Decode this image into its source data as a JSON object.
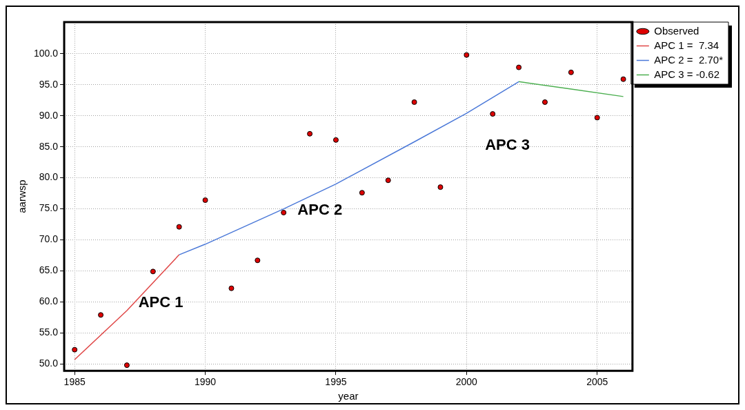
{
  "chart_data": {
    "type": "scatter",
    "xlabel": "year",
    "ylabel": "aarwsp",
    "xlim": [
      1984.6,
      2006.35
    ],
    "ylim": [
      48.9,
      105.1
    ],
    "xticks": [
      1985,
      1990,
      1995,
      2000,
      2005
    ],
    "yticks": [
      {
        "value": 50,
        "label": "50.0"
      },
      {
        "value": 55,
        "label": "55.0"
      },
      {
        "value": 60,
        "label": "60.0"
      },
      {
        "value": 65,
        "label": "65.0"
      },
      {
        "value": 70,
        "label": "70.0"
      },
      {
        "value": 75,
        "label": "75.0"
      },
      {
        "value": 80,
        "label": "80.0"
      },
      {
        "value": 85,
        "label": "85.0"
      },
      {
        "value": 90,
        "label": "90.0"
      },
      {
        "value": 95,
        "label": "95.0"
      },
      {
        "value": 100,
        "label": "100.0"
      }
    ],
    "grid": true,
    "legend": "top right",
    "series": [
      {
        "name": "Observed",
        "marker": "circle",
        "color": "#dd0000",
        "x": [
          1985,
          1986,
          1987,
          1988,
          1989,
          1990,
          1991,
          1992,
          1993,
          1994,
          1995,
          1996,
          1997,
          1998,
          1999,
          2000,
          2001,
          2002,
          2003,
          2004,
          2005,
          2006
        ],
        "values": [
          52.3,
          57.9,
          49.8,
          64.9,
          72.1,
          76.4,
          62.2,
          66.7,
          74.4,
          87.1,
          86.1,
          77.6,
          79.6,
          92.2,
          78.5,
          99.8,
          90.3,
          97.8,
          92.2,
          97.0,
          89.7,
          95.9
        ]
      },
      {
        "name": "APC 1 =  7.34",
        "type": "line",
        "color": "#e04848",
        "x": [
          1985,
          1987,
          1989
        ],
        "values": [
          50.7,
          58.6,
          67.6
        ]
      },
      {
        "name": "APC 2 =  2.70*",
        "type": "line",
        "color": "#4a78d8",
        "x": [
          1989,
          1990,
          1993,
          1995,
          1998,
          2000,
          2002
        ],
        "values": [
          67.6,
          69.3,
          75.0,
          79.0,
          85.8,
          90.4,
          95.5
        ]
      },
      {
        "name": "APC 3 = -0.62",
        "type": "line",
        "color": "#4caf50",
        "x": [
          2002,
          2004,
          2006
        ],
        "values": [
          95.5,
          94.3,
          93.1
        ]
      }
    ],
    "annotations": [
      "APC 1",
      "APC 2",
      "APC 3"
    ]
  }
}
